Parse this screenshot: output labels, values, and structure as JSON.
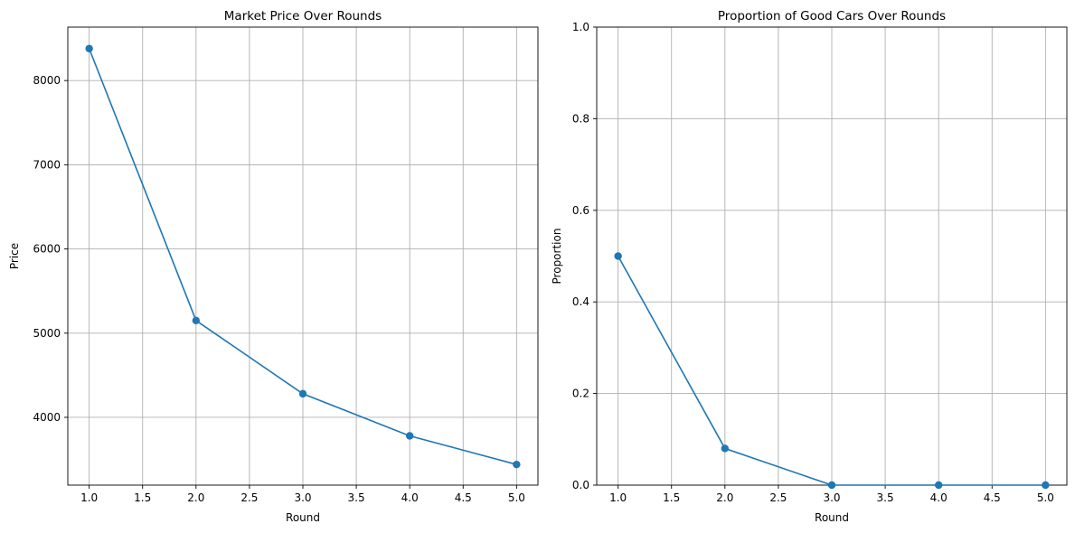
{
  "chart_data": [
    {
      "type": "line",
      "title": "Market Price Over Rounds",
      "xlabel": "Round",
      "ylabel": "Price",
      "x": [
        1,
        2,
        3,
        4,
        5
      ],
      "series": [
        {
          "values": [
            8380,
            5150,
            4280,
            3780,
            3440
          ],
          "color": "#1f77b4",
          "marker": "circle"
        }
      ],
      "xlim": [
        0.8,
        5.2
      ],
      "ylim": [
        3195,
        8635
      ],
      "xticks": [
        1.0,
        1.5,
        2.0,
        2.5,
        3.0,
        3.5,
        4.0,
        4.5,
        5.0
      ],
      "xtick_labels": [
        "1.0",
        "1.5",
        "2.0",
        "2.5",
        "3.0",
        "3.5",
        "4.0",
        "4.5",
        "5.0"
      ],
      "yticks": [
        4000,
        5000,
        6000,
        7000,
        8000
      ],
      "ytick_labels": [
        "4000",
        "5000",
        "6000",
        "7000",
        "8000"
      ],
      "grid": true
    },
    {
      "type": "line",
      "title": "Proportion of Good Cars Over Rounds",
      "xlabel": "Round",
      "ylabel": "Proportion",
      "x": [
        1,
        2,
        3,
        4,
        5
      ],
      "series": [
        {
          "values": [
            0.5,
            0.08,
            0.0,
            0.0,
            0.0
          ],
          "color": "#1f77b4",
          "marker": "circle"
        }
      ],
      "xlim": [
        0.8,
        5.2
      ],
      "ylim": [
        0,
        1
      ],
      "xticks": [
        1.0,
        1.5,
        2.0,
        2.5,
        3.0,
        3.5,
        4.0,
        4.5,
        5.0
      ],
      "xtick_labels": [
        "1.0",
        "1.5",
        "2.0",
        "2.5",
        "3.0",
        "3.5",
        "4.0",
        "4.5",
        "5.0"
      ],
      "yticks": [
        0.0,
        0.2,
        0.4,
        0.6,
        0.8,
        1.0
      ],
      "ytick_labels": [
        "0.0",
        "0.2",
        "0.4",
        "0.6",
        "0.8",
        "1.0"
      ],
      "grid": true
    }
  ]
}
